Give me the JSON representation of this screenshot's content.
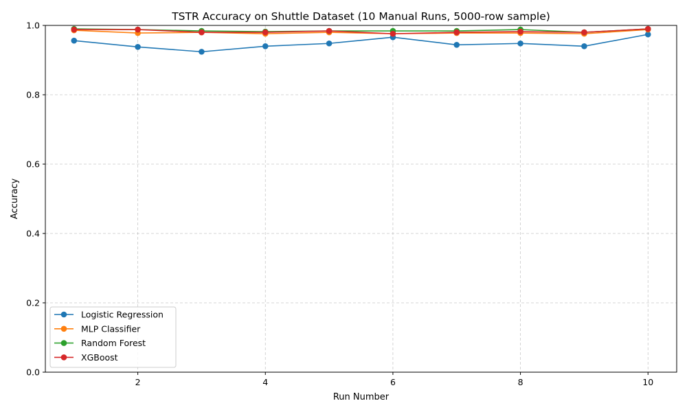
{
  "chart_data": {
    "type": "line",
    "title": "TSTR Accuracy on Shuttle Dataset (10 Manual Runs, 5000-row sample)",
    "xlabel": "Run Number",
    "ylabel": "Accuracy",
    "xlim": [
      0.55,
      10.45
    ],
    "ylim": [
      0.0,
      1.0
    ],
    "x": [
      1,
      2,
      3,
      4,
      5,
      6,
      7,
      8,
      9,
      10
    ],
    "x_ticks": [
      2,
      4,
      6,
      8,
      10
    ],
    "x_tick_labels": [
      "2",
      "4",
      "6",
      "8",
      "10"
    ],
    "y_ticks": [
      0.0,
      0.2,
      0.4,
      0.6,
      0.8,
      1.0
    ],
    "y_tick_labels": [
      "0.0",
      "0.2",
      "0.4",
      "0.6",
      "0.8",
      "1.0"
    ],
    "grid": true,
    "legend_position": "lower-left",
    "series": [
      {
        "name": "Logistic Regression",
        "color": "#1f77b4",
        "values": [
          0.956,
          0.938,
          0.924,
          0.94,
          0.948,
          0.966,
          0.944,
          0.948,
          0.94,
          0.974
        ]
      },
      {
        "name": "MLP Classifier",
        "color": "#ff7f0e",
        "values": [
          0.986,
          0.978,
          0.98,
          0.976,
          0.98,
          0.976,
          0.978,
          0.978,
          0.976,
          0.988
        ]
      },
      {
        "name": "Random Forest",
        "color": "#2ca02c",
        "values": [
          0.99,
          0.988,
          0.984,
          0.982,
          0.984,
          0.984,
          0.984,
          0.988,
          0.98,
          0.99
        ]
      },
      {
        "name": "XGBoost",
        "color": "#d62728",
        "values": [
          0.988,
          0.988,
          0.98,
          0.98,
          0.984,
          0.976,
          0.98,
          0.982,
          0.98,
          0.99
        ]
      }
    ]
  }
}
